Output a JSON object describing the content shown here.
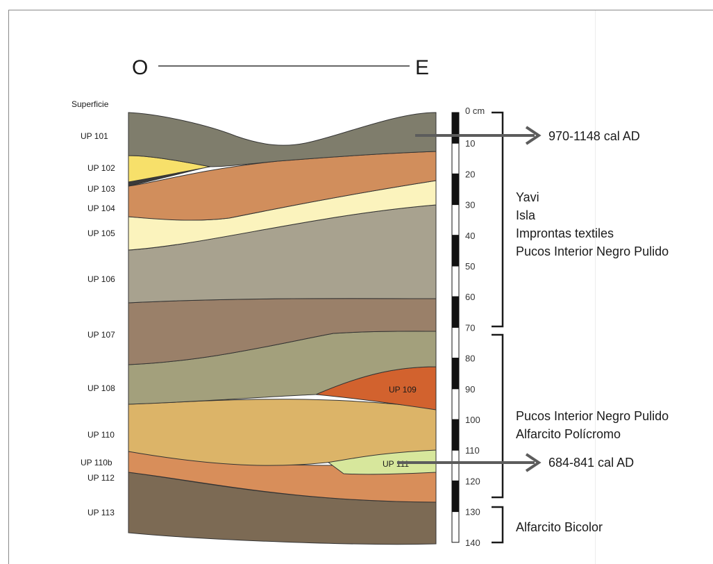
{
  "orientation": {
    "west": "O",
    "east": "E"
  },
  "surface_label": "Superficie",
  "layer_labels": [
    "UP 101",
    "UP 102",
    "UP 103",
    "UP 104",
    "UP 105",
    "UP 106",
    "UP 107",
    "UP 108",
    "UP 110",
    "UP 110b",
    "UP 112",
    "UP 113"
  ],
  "inner_labels": {
    "up109": "UP 109",
    "up111": "UP 111"
  },
  "scale": {
    "unit_label": "0 cm",
    "ticks": [
      "10",
      "20",
      "30",
      "40",
      "50",
      "60",
      "70",
      "80",
      "90",
      "100",
      "110",
      "120",
      "130",
      "140"
    ]
  },
  "dates": {
    "upper": "970-1148 cal AD",
    "lower": "684-841 cal AD"
  },
  "groups": {
    "upper": [
      "Yavi",
      "Isla",
      "Improntas textiles",
      "Pucos Interior Negro Pulido"
    ],
    "middle": [
      "Pucos Interior Negro Pulido",
      "Alfarcito Polícromo"
    ],
    "lower": [
      "Alfarcito Bicolor"
    ]
  },
  "colors": {
    "up101": "#7f7d6c",
    "up102": "#f7e06a",
    "up103": "#3a3a3a",
    "up104": "#d18e5c",
    "up105": "#fbf3bd",
    "up106": "#a8a28f",
    "up107": "#9a8069",
    "up108": "#a3a07c",
    "up109": "#d2622e",
    "up110": "#dcb468",
    "up110b": "#d88e5a",
    "up111": "#d7e79c",
    "up112": "#2d2d2d",
    "up113": "#7c6a54",
    "arrow": "#5c5c5c"
  }
}
